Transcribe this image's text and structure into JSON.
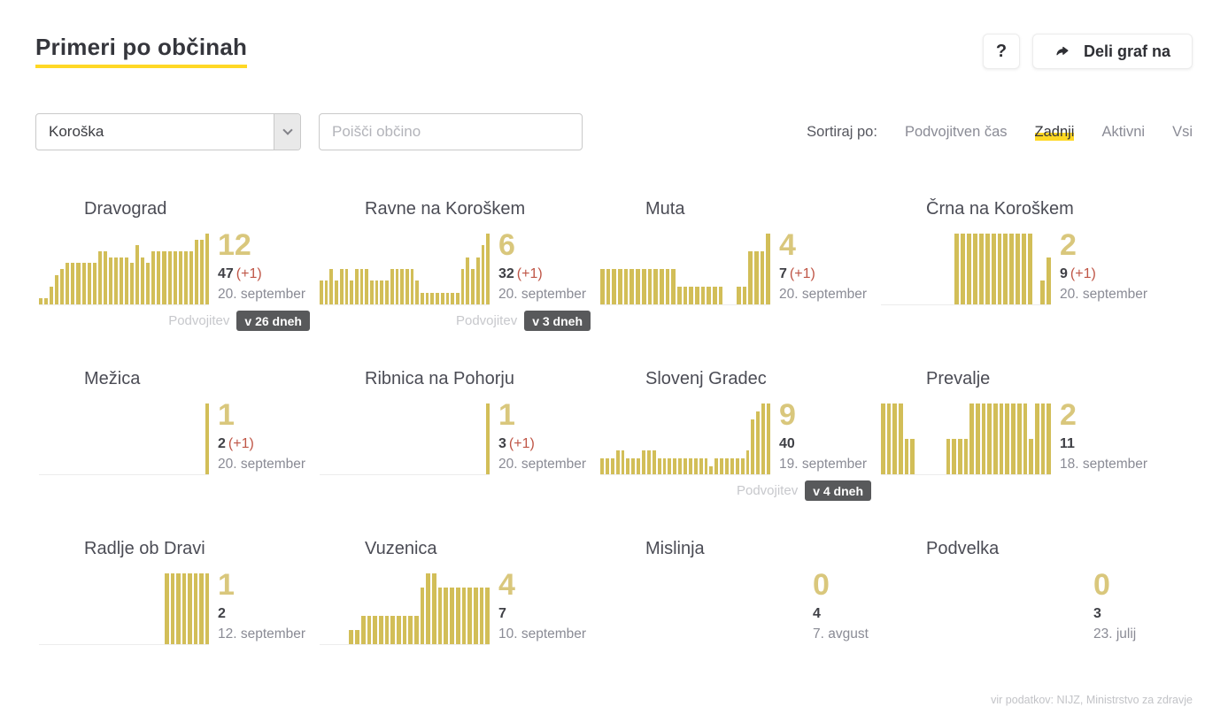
{
  "header": {
    "title": "Primeri po občinah",
    "help_label": "?",
    "share_label": "Deli graf na"
  },
  "filters": {
    "region_selected": "Koroška",
    "search_placeholder": "Poišči občino"
  },
  "sort": {
    "label": "Sortiraj po:",
    "options": [
      {
        "label": "Podvojitven čas",
        "active": false
      },
      {
        "label": "Zadnji",
        "active": true
      },
      {
        "label": "Aktivni",
        "active": false
      },
      {
        "label": "Vsi",
        "active": false
      }
    ]
  },
  "municipalities": [
    {
      "name": "Dravograd",
      "active": "12",
      "total": "47",
      "new": "(+1)",
      "date": "20. september",
      "doubling_label": "Podvojitev",
      "doubling": "v 26 dneh",
      "bars": [
        1,
        1,
        3,
        5,
        6,
        7,
        7,
        7,
        7,
        7,
        7,
        9,
        9,
        8,
        8,
        8,
        8,
        7,
        10,
        8,
        7,
        9,
        9,
        9,
        9,
        9,
        9,
        9,
        9,
        11,
        11,
        12
      ]
    },
    {
      "name": "Ravne na Koroškem",
      "active": "6",
      "total": "32",
      "new": "(+1)",
      "date": "20. september",
      "doubling_label": "Podvojitev",
      "doubling": "v 3 dneh",
      "bars": [
        2,
        2,
        3,
        2,
        3,
        3,
        2,
        3,
        3,
        3,
        2,
        2,
        2,
        2,
        3,
        3,
        3,
        3,
        3,
        2,
        1,
        1,
        1,
        1,
        1,
        1,
        1,
        1,
        3,
        4,
        3,
        4,
        5,
        6
      ]
    },
    {
      "name": "Muta",
      "active": "4",
      "total": "7",
      "new": "(+1)",
      "date": "20. september",
      "bars": [
        2,
        2,
        2,
        2,
        2,
        2,
        2,
        2,
        2,
        2,
        2,
        2,
        2,
        1,
        1,
        1,
        1,
        1,
        1,
        1,
        1,
        0,
        0,
        1,
        1,
        3,
        3,
        3,
        4
      ]
    },
    {
      "name": "Črna na Koroškem",
      "active": "2",
      "total": "9",
      "new": "(+1)",
      "date": "20. september",
      "bars": [
        0,
        0,
        0,
        0,
        0,
        0,
        0,
        0,
        0,
        0,
        0,
        0,
        3,
        3,
        3,
        3,
        3,
        3,
        3,
        3,
        3,
        3,
        3,
        3,
        3,
        0,
        1,
        2
      ]
    },
    {
      "name": "Mežica",
      "active": "1",
      "total": "2",
      "new": "(+1)",
      "date": "20. september",
      "bars": [
        0,
        0,
        0,
        0,
        0,
        0,
        0,
        0,
        0,
        0,
        0,
        0,
        0,
        0,
        0,
        0,
        0,
        0,
        0,
        0,
        0,
        0,
        0,
        0,
        0,
        0,
        0,
        0,
        0,
        0,
        1
      ]
    },
    {
      "name": "Ribnica na Pohorju",
      "active": "1",
      "total": "3",
      "new": "(+1)",
      "date": "20. september",
      "bars": [
        0,
        0,
        0,
        0,
        0,
        0,
        0,
        0,
        0,
        0,
        0,
        0,
        0,
        0,
        0,
        0,
        0,
        0,
        0,
        0,
        0,
        0,
        0,
        0,
        0,
        0,
        0,
        0,
        0,
        0,
        1
      ]
    },
    {
      "name": "Slovenj Gradec",
      "active": "9",
      "total": "40",
      "date": "19. september",
      "doubling_label": "Podvojitev",
      "doubling": "v 4 dneh",
      "bars": [
        2,
        2,
        2,
        3,
        3,
        2,
        2,
        2,
        3,
        3,
        3,
        2,
        2,
        2,
        2,
        2,
        2,
        2,
        2,
        2,
        2,
        1,
        2,
        2,
        2,
        2,
        2,
        2,
        3,
        7,
        8,
        9,
        9
      ]
    },
    {
      "name": "Prevalje",
      "active": "2",
      "total": "11",
      "date": "18. september",
      "bars": [
        2,
        2,
        2,
        2,
        1,
        1,
        0,
        0,
        0,
        0,
        0,
        1,
        1,
        1,
        1,
        2,
        2,
        2,
        2,
        2,
        2,
        2,
        2,
        2,
        2,
        1,
        2,
        2,
        2
      ]
    },
    {
      "name": "Radlje ob Dravi",
      "active": "1",
      "total": "2",
      "date": "12. september",
      "bars": [
        0,
        0,
        0,
        0,
        0,
        0,
        0,
        0,
        0,
        0,
        0,
        0,
        0,
        0,
        0,
        0,
        0,
        0,
        0,
        0,
        0,
        0,
        1,
        1,
        1,
        1,
        1,
        1,
        1,
        1
      ]
    },
    {
      "name": "Vuzenica",
      "active": "4",
      "total": "7",
      "date": "10. september",
      "bars": [
        0,
        0,
        0,
        0,
        0,
        1,
        1,
        2,
        2,
        2,
        2,
        2,
        2,
        2,
        2,
        2,
        2,
        4,
        5,
        5,
        4,
        4,
        4,
        4,
        4,
        4,
        4,
        4,
        4
      ]
    },
    {
      "name": "Mislinja",
      "active": "0",
      "total": "4",
      "date": "7. avgust",
      "bars": []
    },
    {
      "name": "Podvelka",
      "active": "0",
      "total": "3",
      "date": "23. julij",
      "bars": []
    }
  ],
  "footer": {
    "source": "vir podatkov: NIJZ, Ministrstvo za zdravje"
  },
  "colors": {
    "accent_yellow": "#ffd824",
    "bar_gold": "#d2be58",
    "active_number_gold": "#d9c77c",
    "new_cases_red": "#bf5546",
    "badge_gray": "#58595b"
  }
}
